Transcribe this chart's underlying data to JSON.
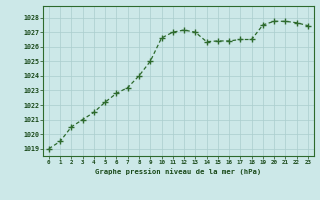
{
  "x": [
    0,
    1,
    2,
    3,
    4,
    5,
    6,
    7,
    8,
    9,
    10,
    11,
    12,
    13,
    14,
    15,
    16,
    17,
    18,
    19,
    20,
    21,
    22,
    23
  ],
  "y": [
    1019.0,
    1019.5,
    1020.5,
    1021.0,
    1021.5,
    1022.2,
    1022.8,
    1023.2,
    1024.0,
    1025.0,
    1026.6,
    1027.0,
    1027.15,
    1027.0,
    1026.35,
    1026.4,
    1026.4,
    1026.5,
    1026.5,
    1027.5,
    1027.75,
    1027.75,
    1027.65,
    1027.45
  ],
  "ylim_min": 1018.5,
  "ylim_max": 1028.8,
  "yticks": [
    1019,
    1020,
    1021,
    1022,
    1023,
    1024,
    1025,
    1026,
    1027,
    1028
  ],
  "xticks": [
    0,
    1,
    2,
    3,
    4,
    5,
    6,
    7,
    8,
    9,
    10,
    11,
    12,
    13,
    14,
    15,
    16,
    17,
    18,
    19,
    20,
    21,
    22,
    23
  ],
  "line_color": "#2d6a2d",
  "bg_color": "#cce8e8",
  "grid_color": "#aacece",
  "xlabel": "Graphe pression niveau de la mer (hPa)",
  "tick_color": "#1a4a1a",
  "border_color": "#2d6a2d"
}
